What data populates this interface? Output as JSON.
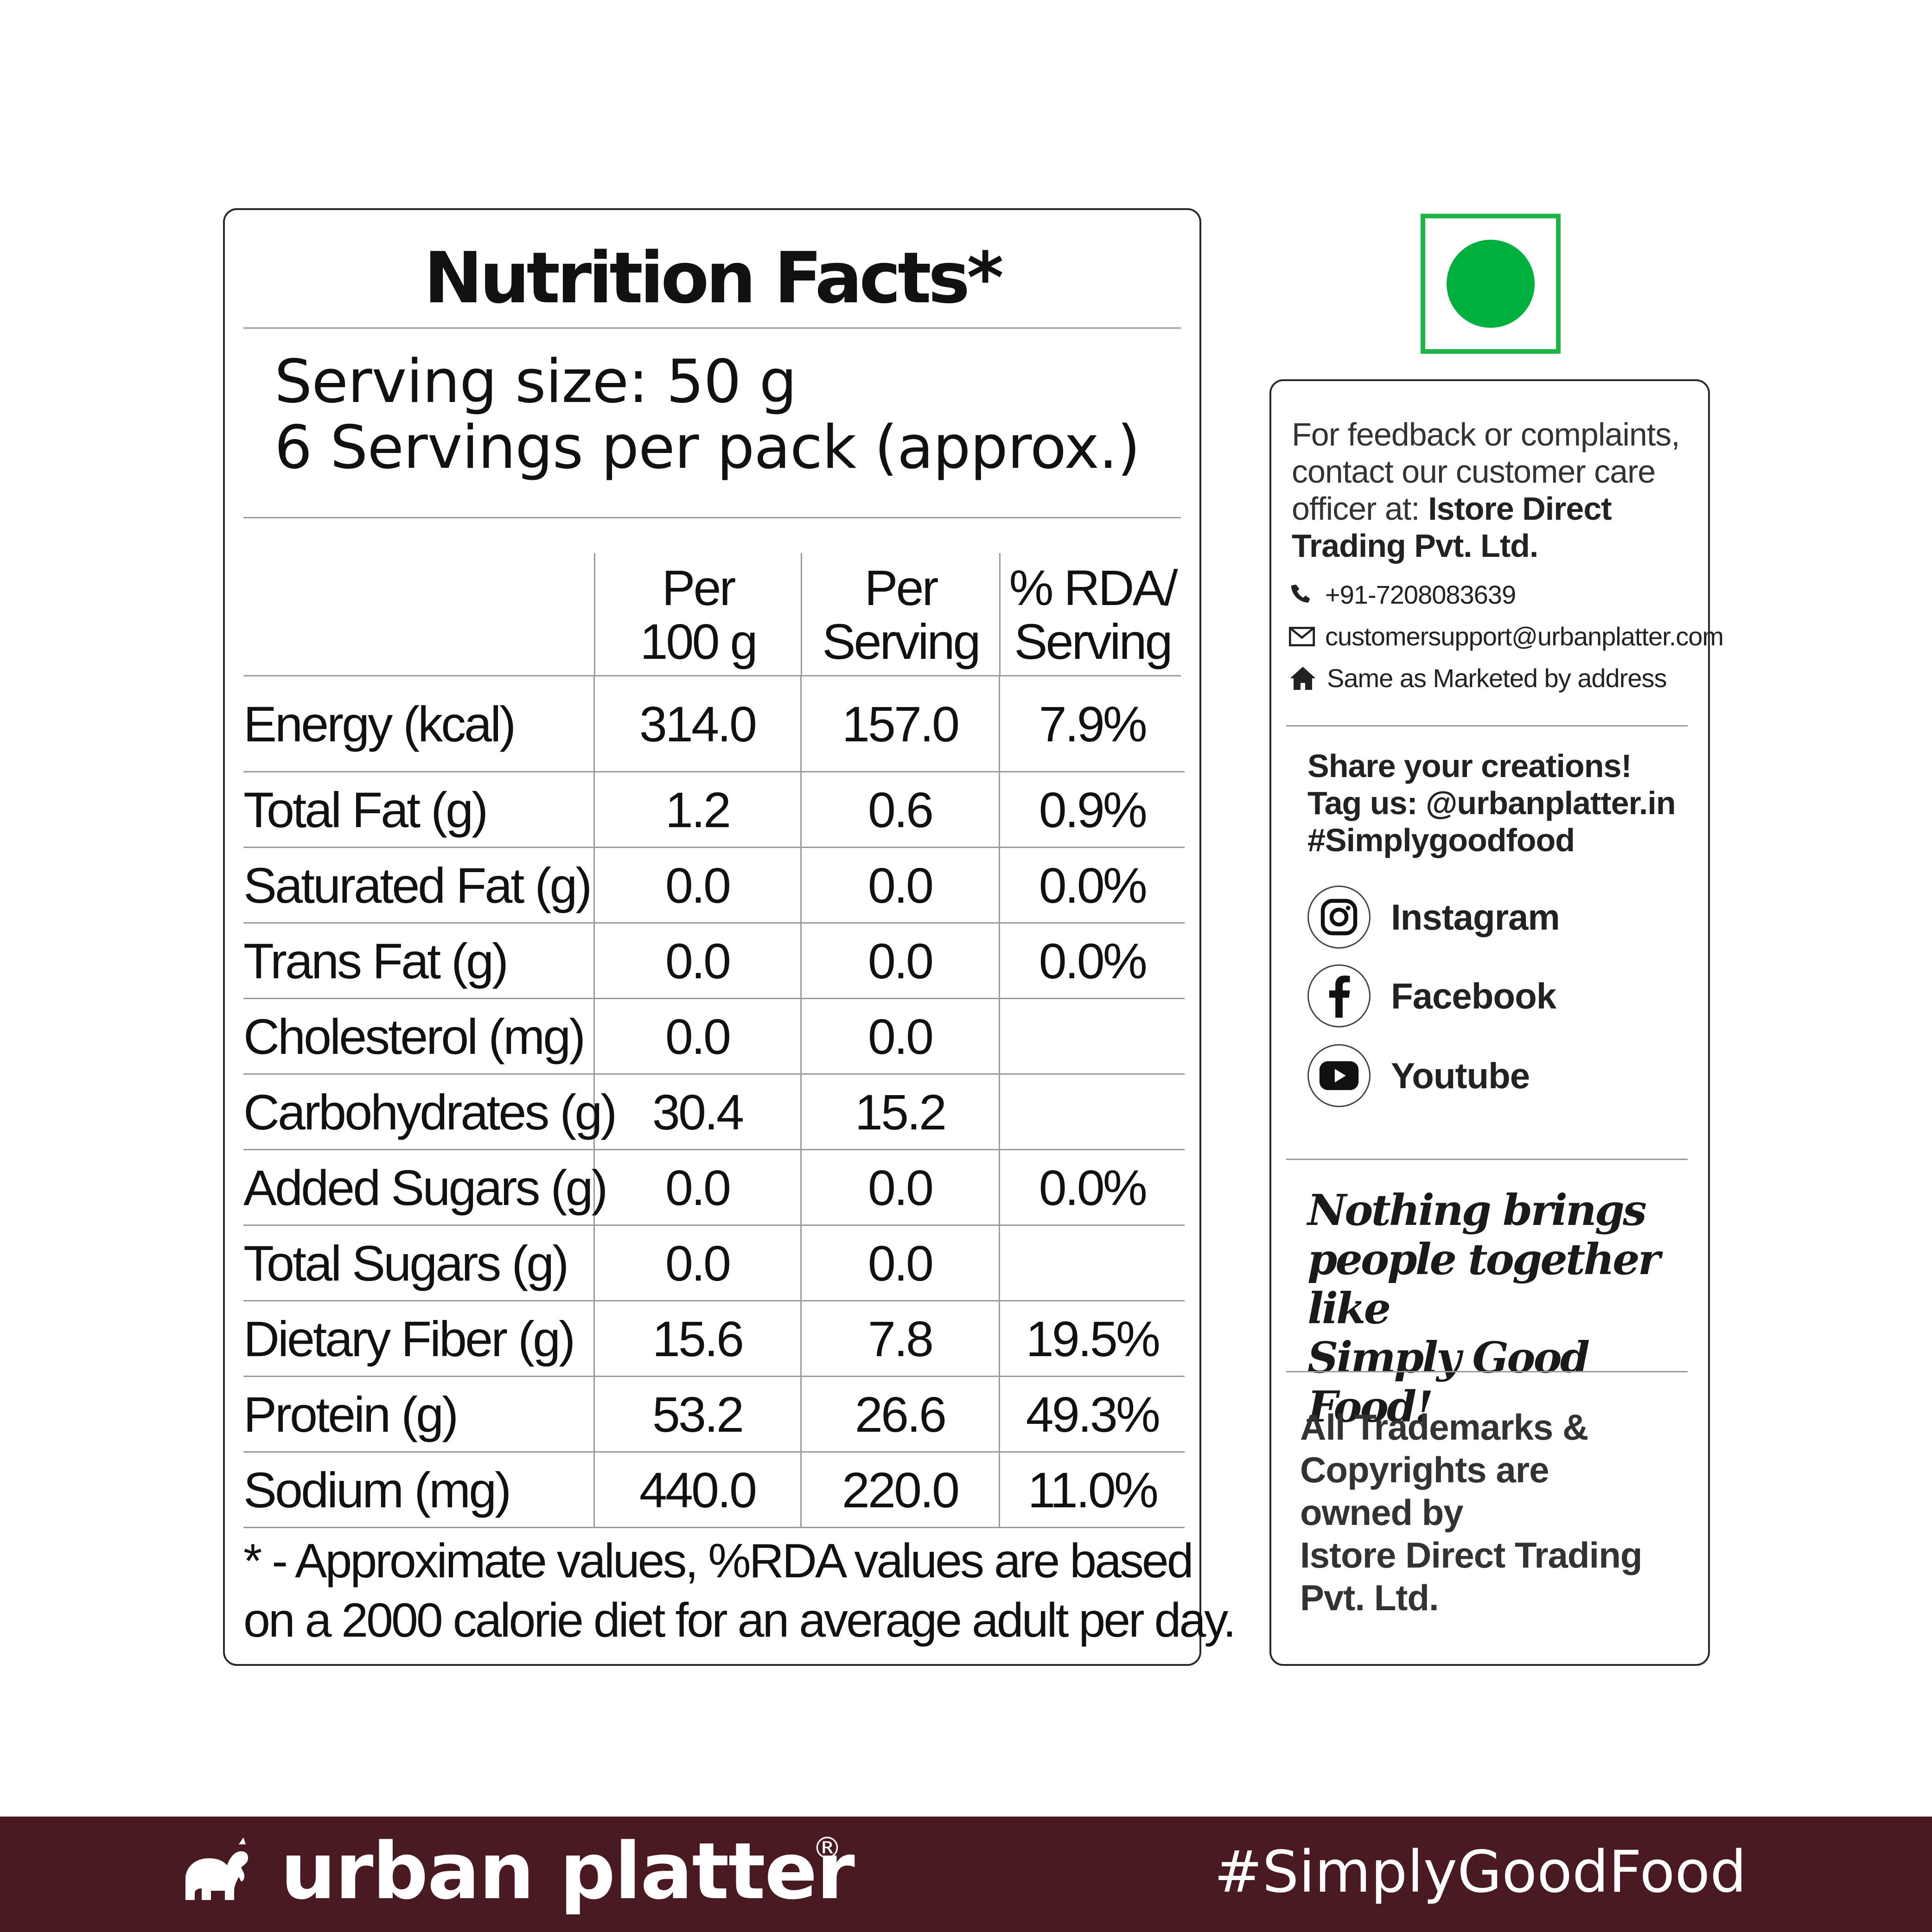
{
  "nutrition": {
    "title": "Nutrition Facts*",
    "serving_size": "Serving size: 50 g",
    "servings_per_pack": "6 Servings per pack (approx.)",
    "columns": [
      {
        "line1": "Per",
        "line2": "100 g"
      },
      {
        "line1": "Per",
        "line2": "Serving"
      },
      {
        "line1": "% RDA/",
        "line2": "Serving"
      }
    ],
    "rows": [
      {
        "name": "Energy (kcal)",
        "per100": "314.0",
        "perServing": "157.0",
        "rda": "7.9%"
      },
      {
        "name": "Total Fat (g)",
        "per100": "1.2",
        "perServing": "0.6",
        "rda": "0.9%"
      },
      {
        "name": "Saturated Fat (g)",
        "per100": "0.0",
        "perServing": "0.0",
        "rda": "0.0%"
      },
      {
        "name": "Trans Fat (g)",
        "per100": "0.0",
        "perServing": "0.0",
        "rda": "0.0%"
      },
      {
        "name": "Cholesterol (mg)",
        "per100": "0.0",
        "perServing": "0.0",
        "rda": ""
      },
      {
        "name": "Carbohydrates (g)",
        "per100": "30.4",
        "perServing": "15.2",
        "rda": ""
      },
      {
        "name": "Added Sugars (g)",
        "per100": "0.0",
        "perServing": "0.0",
        "rda": "0.0%"
      },
      {
        "name": "Total Sugars (g)",
        "per100": "0.0",
        "perServing": "0.0",
        "rda": ""
      },
      {
        "name": "Dietary Fiber (g)",
        "per100": "15.6",
        "perServing": "7.8",
        "rda": "19.5%"
      },
      {
        "name": "Protein (g)",
        "per100": "53.2",
        "perServing": "26.6",
        "rda": "49.3%"
      },
      {
        "name": "Sodium (mg)",
        "per100": "440.0",
        "perServing": "220.0",
        "rda": "11.0%"
      }
    ],
    "footnote_line1": "* - Approximate values, %RDA values are based",
    "footnote_line2": "on a 2000 calorie diet for an average adult per day."
  },
  "veg_mark": {
    "color": "#00b03f",
    "icon": "veg-symbol-icon"
  },
  "info": {
    "feedback_text": "For feedback or complaints, contact our customer care officer at: ",
    "feedback_company": "Istore Direct Trading Pvt. Ltd.",
    "phone": "+91-7208083639",
    "email": "customersupport@urbanplatter.com",
    "address": "Same as Marketed by address",
    "share_line1": "Share your creations!",
    "share_line2": "Tag us: @urbanplatter.in",
    "share_line3": "#Simplygoodfood",
    "socials": [
      {
        "label": "Instagram",
        "icon": "instagram-icon"
      },
      {
        "label": "Facebook",
        "icon": "facebook-icon"
      },
      {
        "label": "Youtube",
        "icon": "youtube-icon"
      }
    ],
    "slogan_line1": "Nothing brings",
    "slogan_line2": "people together like",
    "slogan_line3": "Simply Good Food!",
    "trademark_line1": "All Trademarks &",
    "trademark_line2": "Copyrights are",
    "trademark_line3": "owned by",
    "trademark_line4": "Istore Direct Trading",
    "trademark_line5": "Pvt. Ltd."
  },
  "footer": {
    "brand": "urban platter",
    "registered": "®",
    "hashtag": "#SimplyGoodFood",
    "background": "#4a1a22",
    "logo_icon": "elephant-logo-icon"
  }
}
